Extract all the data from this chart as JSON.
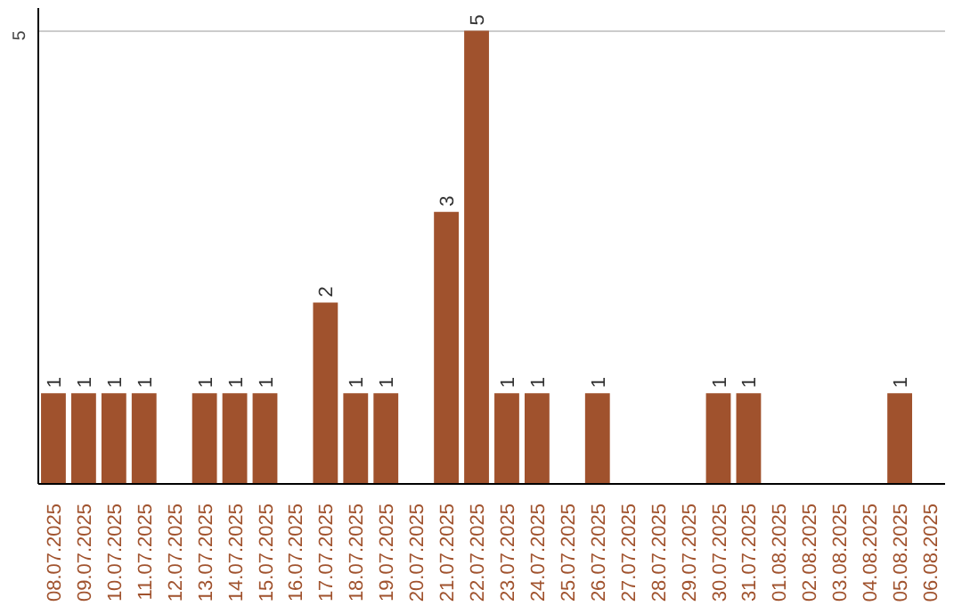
{
  "chart_data": {
    "type": "bar",
    "categories": [
      "08.07.2025",
      "09.07.2025",
      "10.07.2025",
      "11.07.2025",
      "12.07.2025",
      "13.07.2025",
      "14.07.2025",
      "15.07.2025",
      "16.07.2025",
      "17.07.2025",
      "18.07.2025",
      "19.07.2025",
      "20.07.2025",
      "21.07.2025",
      "22.07.2025",
      "23.07.2025",
      "24.07.2025",
      "25.07.2025",
      "26.07.2025",
      "27.07.2025",
      "28.07.2025",
      "29.07.2025",
      "30.07.2025",
      "31.07.2025",
      "01.08.2025",
      "02.08.2025",
      "03.08.2025",
      "04.08.2025",
      "05.08.2025",
      "06.08.2025"
    ],
    "values": [
      1,
      1,
      1,
      1,
      null,
      1,
      1,
      1,
      null,
      2,
      1,
      1,
      null,
      3,
      5,
      1,
      1,
      null,
      1,
      null,
      null,
      null,
      1,
      1,
      null,
      null,
      null,
      null,
      1,
      null
    ],
    "color": "#a0522d",
    "ylim": [
      0,
      5.25
    ],
    "yticks": [
      5
    ],
    "grid": "y",
    "data_labels": true
  }
}
